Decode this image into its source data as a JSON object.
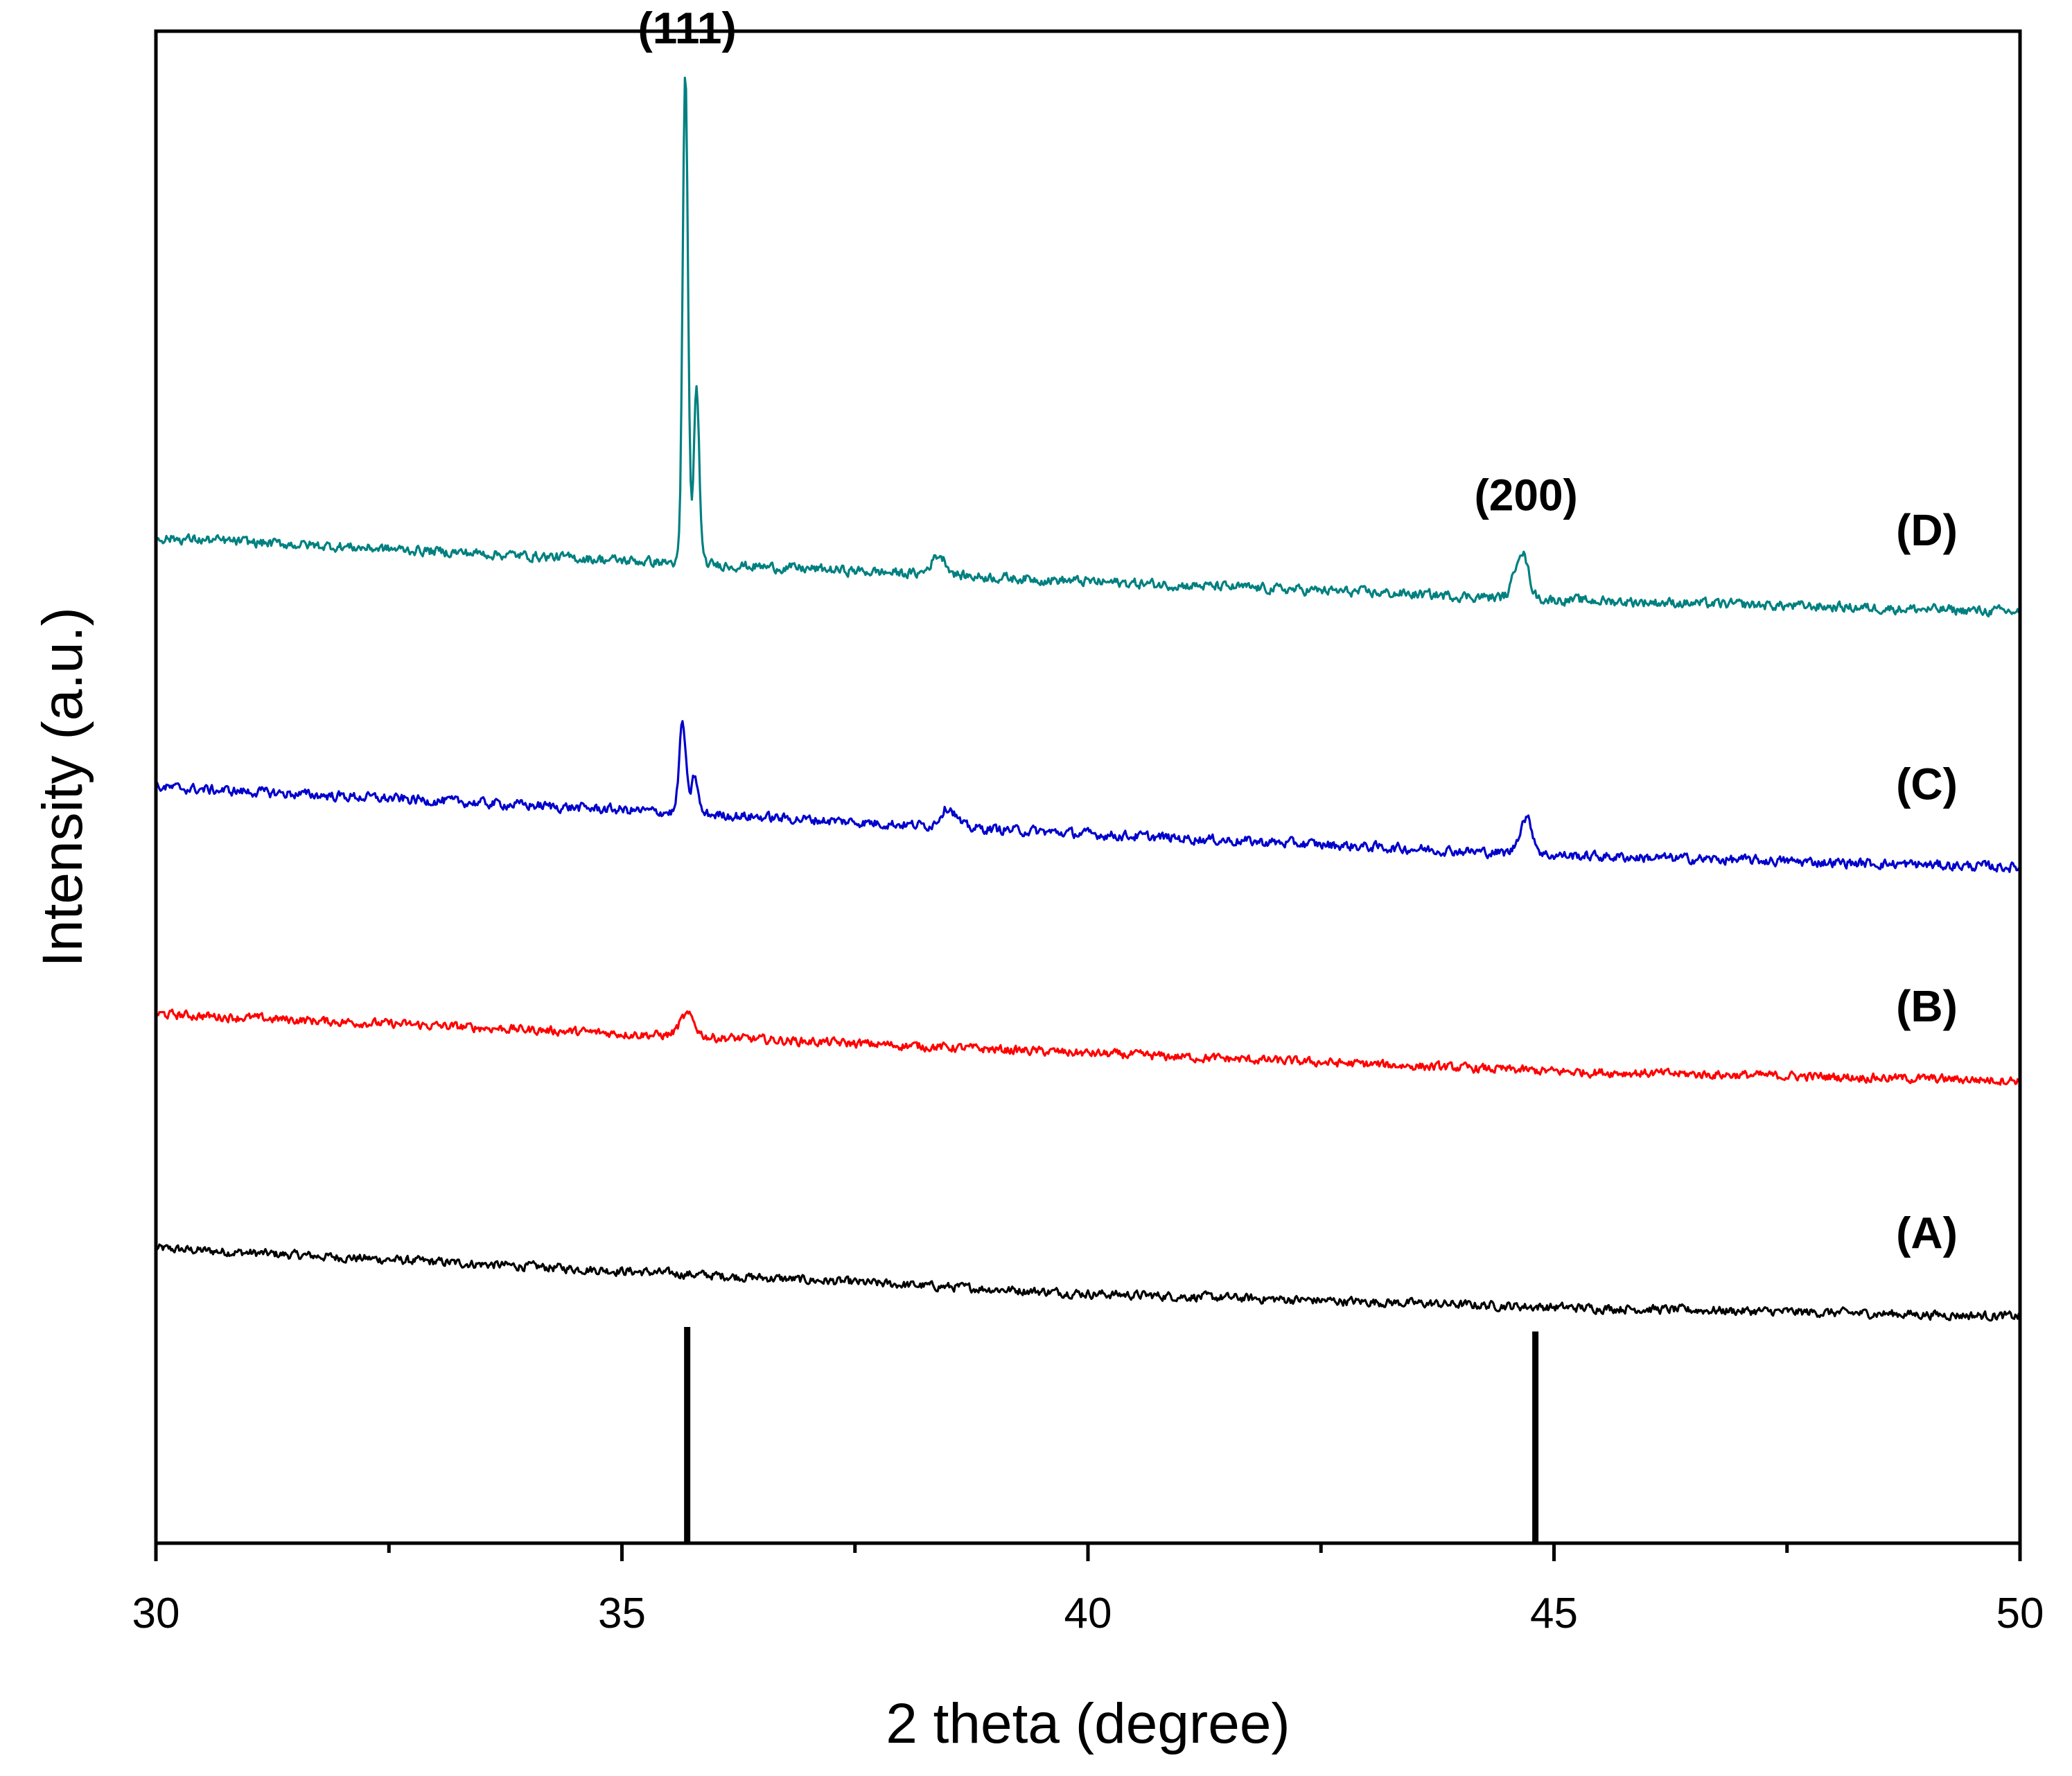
{
  "chart_data": {
    "type": "line",
    "title": "",
    "xlabel": "2 theta (degree)",
    "ylabel": "Intensity (a.u.)",
    "xlim": [
      30,
      50
    ],
    "ylim": [
      0,
      100
    ],
    "xticks": [
      30,
      35,
      40,
      45,
      50
    ],
    "x_minor_ticks": [
      32.5,
      37.5,
      42.5,
      47.5
    ],
    "grid": false,
    "y_ticks_shown": false,
    "series": [
      {
        "name": "(A)",
        "color": "#000000",
        "baseline": [
          [
            30,
            19.5
          ],
          [
            35,
            18.0
          ],
          [
            40,
            16.5
          ],
          [
            45,
            15.6
          ],
          [
            50,
            15.0
          ]
        ],
        "noise": 0.45,
        "peaks": []
      },
      {
        "name": "(B)",
        "color": "#ff0000",
        "baseline": [
          [
            30,
            35.0
          ],
          [
            35,
            33.7
          ],
          [
            40,
            32.4
          ],
          [
            45,
            31.2
          ],
          [
            50,
            30.6
          ]
        ],
        "noise": 0.45,
        "peaks": [
          {
            "x": 35.7,
            "height": 1.4,
            "width": 0.08
          }
        ]
      },
      {
        "name": "(C)",
        "color": "#0000cc",
        "baseline": [
          [
            30,
            50.0
          ],
          [
            35,
            48.5
          ],
          [
            40,
            46.9
          ],
          [
            45,
            45.5
          ],
          [
            50,
            44.7
          ]
        ],
        "noise": 0.5,
        "peaks": [
          {
            "x": 35.65,
            "height": 6.0,
            "width": 0.035
          },
          {
            "x": 35.78,
            "height": 2.5,
            "width": 0.035
          },
          {
            "x": 38.5,
            "height": 1.3,
            "width": 0.08
          },
          {
            "x": 44.7,
            "height": 2.4,
            "width": 0.07
          }
        ]
      },
      {
        "name": "(D)",
        "color": "#008080",
        "baseline": [
          [
            30,
            66.5
          ],
          [
            35,
            65.0
          ],
          [
            40,
            63.6
          ],
          [
            45,
            62.4
          ],
          [
            50,
            61.6
          ]
        ],
        "noise": 0.5,
        "peaks": [
          {
            "x": 35.68,
            "height": 32.5,
            "width": 0.028
          },
          {
            "x": 35.8,
            "height": 11.5,
            "width": 0.03
          },
          {
            "x": 38.4,
            "height": 1.3,
            "width": 0.08
          },
          {
            "x": 44.65,
            "height": 3.2,
            "width": 0.07
          }
        ]
      }
    ],
    "reference_lines": [
      {
        "x": 35.7,
        "y_top": 14.3
      },
      {
        "x": 44.8,
        "y_top": 14.0
      }
    ],
    "annotations": [
      {
        "text": "(111)",
        "x": 35.7,
        "y": 99.2
      },
      {
        "text": "(200)",
        "x": 44.7,
        "y": 68.3
      },
      {
        "text": "(D)",
        "x": 49.0,
        "y": 66.0
      },
      {
        "text": "(C)",
        "x": 49.0,
        "y": 49.2
      },
      {
        "text": "(B)",
        "x": 49.0,
        "y": 34.5
      },
      {
        "text": "(A)",
        "x": 49.0,
        "y": 19.5
      }
    ]
  }
}
